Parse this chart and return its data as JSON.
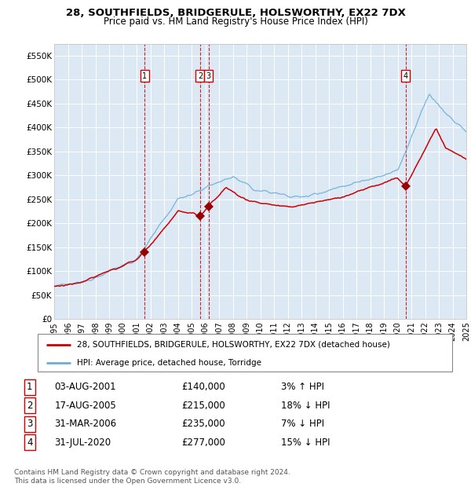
{
  "title": "28, SOUTHFIELDS, BRIDGERULE, HOLSWORTHY, EX22 7DX",
  "subtitle": "Price paid vs. HM Land Registry's House Price Index (HPI)",
  "plot_bg_color": "#dce9f5",
  "ylim": [
    0,
    575000
  ],
  "yticks": [
    0,
    50000,
    100000,
    150000,
    200000,
    250000,
    300000,
    350000,
    400000,
    450000,
    500000,
    550000
  ],
  "ytick_labels": [
    "£0",
    "£50K",
    "£100K",
    "£150K",
    "£200K",
    "£250K",
    "£300K",
    "£350K",
    "£400K",
    "£450K",
    "£500K",
    "£550K"
  ],
  "year_start": 1995,
  "year_end": 2025,
  "hpi_color": "#6baed6",
  "price_color": "#cc0000",
  "marker_color": "#990000",
  "vline_color": "#cc0000",
  "purchases": [
    {
      "date_num": 2001.583,
      "price": 140000,
      "label": "1"
    },
    {
      "date_num": 2005.622,
      "price": 215000,
      "label": "2"
    },
    {
      "date_num": 2006.247,
      "price": 235000,
      "label": "3"
    },
    {
      "date_num": 2020.581,
      "price": 277000,
      "label": "4"
    }
  ],
  "table_rows": [
    {
      "num": "1",
      "date": "03-AUG-2001",
      "price": "£140,000",
      "note": "3% ↑ HPI"
    },
    {
      "num": "2",
      "date": "17-AUG-2005",
      "price": "£215,000",
      "note": "18% ↓ HPI"
    },
    {
      "num": "3",
      "date": "31-MAR-2006",
      "price": "£235,000",
      "note": "7% ↓ HPI"
    },
    {
      "num": "4",
      "date": "31-JUL-2020",
      "price": "£277,000",
      "note": "15% ↓ HPI"
    }
  ],
  "legend_line1": "28, SOUTHFIELDS, BRIDGERULE, HOLSWORTHY, EX22 7DX (detached house)",
  "legend_line2": "HPI: Average price, detached house, Torridge",
  "footer": "Contains HM Land Registry data © Crown copyright and database right 2024.\nThis data is licensed under the Open Government Licence v3.0."
}
